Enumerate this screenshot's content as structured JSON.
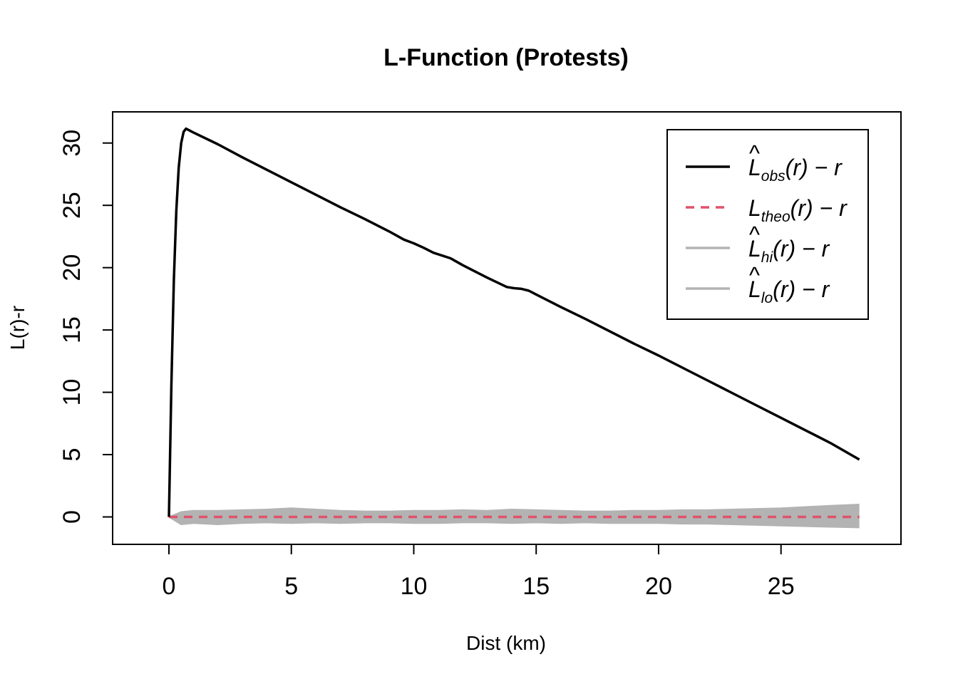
{
  "chart_data": {
    "type": "line",
    "title": "L-Function (Protests)",
    "xlabel": "Dist (km)",
    "ylabel": "L(r)-r",
    "xlim": [
      -2.3,
      29.9
    ],
    "ylim": [
      -2.2,
      32.5
    ],
    "xticks": [
      0,
      5,
      10,
      15,
      20,
      25
    ],
    "yticks": [
      0,
      5,
      10,
      15,
      20,
      25,
      30
    ],
    "grid": false,
    "legend_position": "top-right",
    "series": [
      {
        "key": "obs",
        "legend_base": "L",
        "legend_sub": "obs",
        "legend_tail": "(r) − r",
        "hat": true,
        "color": "#000000",
        "dash": "solid",
        "x": [
          0,
          0.1,
          0.2,
          0.3,
          0.4,
          0.5,
          0.6,
          0.7,
          1.0,
          2.0,
          3.0,
          4.0,
          5.0,
          6.0,
          7.0,
          8.0,
          9.0,
          9.6,
          10.0,
          10.4,
          10.8,
          11.5,
          12.0,
          13.0,
          13.8,
          14.1,
          14.4,
          14.7,
          15.0,
          16.0,
          17.0,
          18.0,
          19.0,
          20.0,
          21.0,
          22.0,
          23.0,
          24.0,
          25.0,
          26.0,
          27.0,
          28.2
        ],
        "y": [
          0,
          10.5,
          19.0,
          24.5,
          28.0,
          30.0,
          30.9,
          31.15,
          30.85,
          29.9,
          28.85,
          27.85,
          26.85,
          25.85,
          24.85,
          23.9,
          22.9,
          22.25,
          21.95,
          21.6,
          21.2,
          20.75,
          20.2,
          19.2,
          18.45,
          18.35,
          18.3,
          18.15,
          17.85,
          16.85,
          15.9,
          14.9,
          13.9,
          12.95,
          11.95,
          10.95,
          9.95,
          8.95,
          7.95,
          6.95,
          5.95,
          4.6
        ]
      },
      {
        "key": "theo",
        "legend_base": "L",
        "legend_sub": "theo",
        "legend_tail": "(r) − r",
        "hat": false,
        "color": "#DF536B",
        "dash": "dashed",
        "x": [
          0,
          28.2
        ],
        "y": [
          0,
          0
        ]
      },
      {
        "key": "hi",
        "legend_base": "L",
        "legend_sub": "hi",
        "legend_tail": "(r) − r",
        "hat": true,
        "color": "#B3B3B3",
        "dash": "solid",
        "x": [
          0,
          0.5,
          1,
          2,
          3,
          4,
          5,
          6,
          7,
          8,
          9,
          10,
          11,
          12,
          13,
          14,
          15,
          16,
          17,
          18,
          19,
          20,
          21,
          22,
          23,
          24,
          25,
          26,
          27,
          28.2
        ],
        "y": [
          0,
          0.4,
          0.5,
          0.5,
          0.55,
          0.6,
          0.7,
          0.6,
          0.5,
          0.45,
          0.45,
          0.5,
          0.5,
          0.55,
          0.5,
          0.6,
          0.55,
          0.5,
          0.45,
          0.45,
          0.5,
          0.5,
          0.55,
          0.55,
          0.6,
          0.65,
          0.7,
          0.8,
          0.9,
          1.0
        ]
      },
      {
        "key": "lo",
        "legend_base": "L",
        "legend_sub": "lo",
        "legend_tail": "(r) − r",
        "hat": true,
        "color": "#B3B3B3",
        "dash": "solid",
        "x": [
          0,
          0.5,
          1,
          2,
          3,
          4,
          5,
          6,
          7,
          8,
          9,
          10,
          11,
          12,
          13,
          14,
          15,
          16,
          17,
          18,
          19,
          20,
          21,
          22,
          23,
          24,
          25,
          26,
          27,
          28.2
        ],
        "y": [
          0,
          -0.6,
          -0.5,
          -0.6,
          -0.5,
          -0.45,
          -0.5,
          -0.45,
          -0.5,
          -0.45,
          -0.45,
          -0.5,
          -0.5,
          -0.45,
          -0.45,
          -0.5,
          -0.45,
          -0.5,
          -0.45,
          -0.5,
          -0.5,
          -0.5,
          -0.55,
          -0.55,
          -0.6,
          -0.65,
          -0.7,
          -0.75,
          -0.8,
          -0.85
        ]
      }
    ]
  }
}
